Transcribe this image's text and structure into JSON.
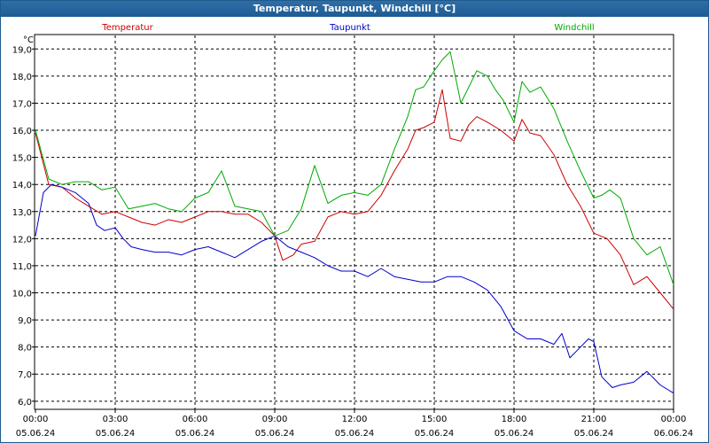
{
  "window": {
    "title": "Temperatur, Taupunkt, Windchill [°C]"
  },
  "chart_data": {
    "type": "line",
    "title": "Temperatur, Taupunkt, Windchill [°C]",
    "y_unit": "°C",
    "ylim": [
      6.0,
      19.0
    ],
    "y_ticks": [
      "19,0",
      "18,0",
      "17,0",
      "16,0",
      "15,0",
      "14,0",
      "13,0",
      "12,0",
      "11,0",
      "10,0",
      "9,0",
      "8,0",
      "7,0",
      "6,0"
    ],
    "x_range_hours": [
      0,
      24
    ],
    "x_ticks": [
      {
        "time": "00:00",
        "date": "05.06.24"
      },
      {
        "time": "03:00",
        "date": "05.06.24"
      },
      {
        "time": "06:00",
        "date": "05.06.24"
      },
      {
        "time": "09:00",
        "date": "05.06.24"
      },
      {
        "time": "12:00",
        "date": "05.06.24"
      },
      {
        "time": "15:00",
        "date": "05.06.24"
      },
      {
        "time": "18:00",
        "date": "05.06.24"
      },
      {
        "time": "21:00",
        "date": "05.06.24"
      },
      {
        "time": "00:00",
        "date": "06.06.24"
      }
    ],
    "grid": true,
    "colors": {
      "Temperatur": "#cc0000",
      "Taupunkt": "#0000cc",
      "Windchill": "#00aa00"
    },
    "series": [
      {
        "name": "Temperatur",
        "x": [
          0,
          0.5,
          1,
          1.5,
          2,
          2.5,
          3,
          3.5,
          4,
          4.5,
          5,
          5.5,
          6,
          6.5,
          7,
          7.5,
          8,
          8.5,
          9,
          9.3,
          9.7,
          10,
          10.5,
          11,
          11.5,
          12,
          12.5,
          13,
          13.5,
          14,
          14.3,
          14.6,
          15,
          15.3,
          15.6,
          16,
          16.3,
          16.6,
          17,
          17.5,
          18,
          18.3,
          18.6,
          19,
          19.5,
          20,
          20.5,
          21,
          21.5,
          22,
          22.5,
          23,
          23.5,
          24
        ],
        "values": [
          15.9,
          14.0,
          13.9,
          13.5,
          13.2,
          12.9,
          13.0,
          12.8,
          12.6,
          12.5,
          12.7,
          12.6,
          12.8,
          13.0,
          13.0,
          12.9,
          12.9,
          12.6,
          12.1,
          11.2,
          11.4,
          11.8,
          11.9,
          12.8,
          13.0,
          12.9,
          13.0,
          13.6,
          14.5,
          15.3,
          16.0,
          16.1,
          16.3,
          17.5,
          15.7,
          15.6,
          16.2,
          16.5,
          16.3,
          16.0,
          15.6,
          16.4,
          15.9,
          15.8,
          15.1,
          14.0,
          13.2,
          12.2,
          12.0,
          11.4,
          10.3,
          10.6,
          10.0,
          9.4
        ]
      },
      {
        "name": "Taupunkt",
        "x": [
          0,
          0.3,
          0.6,
          1,
          1.5,
          2,
          2.3,
          2.6,
          3,
          3.3,
          3.6,
          4,
          4.5,
          5,
          5.5,
          6,
          6.5,
          7,
          7.5,
          8,
          8.5,
          9,
          9.5,
          10,
          10.5,
          11,
          11.5,
          12,
          12.5,
          13,
          13.5,
          14,
          14.5,
          15,
          15.5,
          16,
          16.5,
          17,
          17.5,
          18,
          18.5,
          19,
          19.5,
          19.8,
          20.1,
          20.5,
          20.8,
          21,
          21.3,
          21.7,
          22,
          22.5,
          23,
          23.5,
          24
        ],
        "values": [
          12.1,
          13.7,
          14.0,
          13.9,
          13.7,
          13.3,
          12.5,
          12.3,
          12.4,
          12.0,
          11.7,
          11.6,
          11.5,
          11.5,
          11.4,
          11.6,
          11.7,
          11.5,
          11.3,
          11.6,
          11.9,
          12.1,
          11.7,
          11.5,
          11.3,
          11.0,
          10.8,
          10.8,
          10.6,
          10.9,
          10.6,
          10.5,
          10.4,
          10.4,
          10.6,
          10.6,
          10.4,
          10.1,
          9.5,
          8.6,
          8.3,
          8.3,
          8.1,
          8.5,
          7.6,
          8.0,
          8.3,
          8.2,
          6.9,
          6.5,
          6.6,
          6.7,
          7.1,
          6.6,
          6.3
        ]
      },
      {
        "name": "Windchill",
        "x": [
          0,
          0.5,
          1,
          1.5,
          2,
          2.5,
          3,
          3.5,
          4,
          4.5,
          5,
          5.5,
          6,
          6.5,
          7,
          7.5,
          8,
          8.5,
          9,
          9.5,
          10,
          10.5,
          11,
          11.5,
          12,
          12.5,
          13,
          13.5,
          14,
          14.3,
          14.6,
          15,
          15.3,
          15.6,
          16,
          16.3,
          16.6,
          17,
          17.3,
          17.6,
          18,
          18.3,
          18.6,
          19,
          19.5,
          20,
          20.5,
          21,
          21.3,
          21.6,
          22,
          22.5,
          23,
          23.5,
          24
        ],
        "values": [
          16.0,
          14.2,
          14.0,
          14.1,
          14.1,
          13.8,
          13.9,
          13.1,
          13.2,
          13.3,
          13.1,
          13.0,
          13.5,
          13.7,
          14.5,
          13.2,
          13.1,
          13.0,
          12.1,
          12.3,
          13.1,
          14.7,
          13.3,
          13.6,
          13.7,
          13.6,
          14.0,
          15.3,
          16.5,
          17.5,
          17.6,
          18.2,
          18.6,
          18.9,
          17.0,
          17.6,
          18.2,
          18.0,
          17.5,
          17.1,
          16.3,
          17.8,
          17.4,
          17.6,
          16.8,
          15.6,
          14.5,
          13.5,
          13.6,
          13.8,
          13.5,
          12.0,
          11.4,
          11.7,
          10.3
        ]
      }
    ]
  }
}
